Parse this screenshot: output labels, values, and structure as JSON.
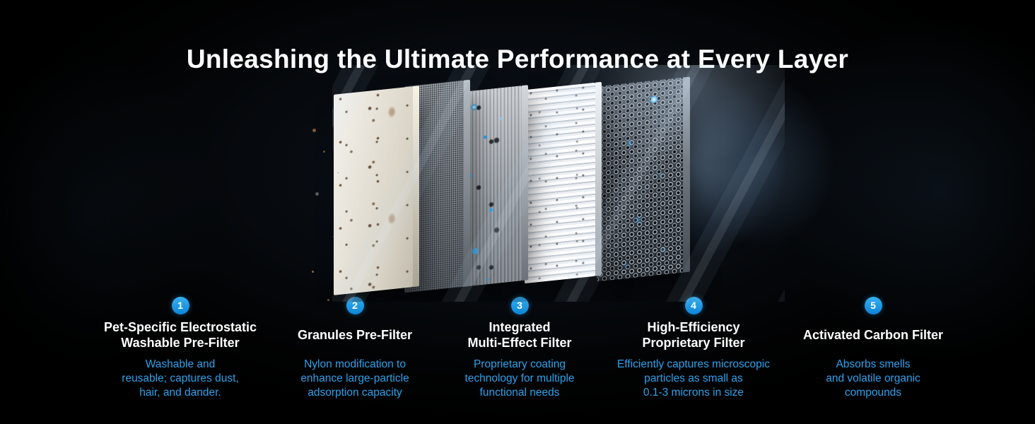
{
  "page": {
    "title": "Unleashing the Ultimate Performance at Every Layer",
    "background_color": "#000000",
    "accent_color": "#2da2ec",
    "badge_color": "#1895e8",
    "title_color": "#ffffff"
  },
  "graphic": {
    "panels": [
      "washable-pre-filter-panel",
      "granules-pre-filter-panel",
      "integrated-multi-effect-filter-panel",
      "high-efficiency-proprietary-filter-panel",
      "activated-carbon-filter-panel"
    ]
  },
  "layers": [
    {
      "number": "1",
      "title": "Pet-Specific Electrostatic\nWashable Pre-Filter",
      "description": "Washable and\nreusable; captures dust,\nhair, and dander."
    },
    {
      "number": "2",
      "title": "Granules Pre-Filter",
      "description": "Nylon modification to\nenhance large-particle\nadsorption capacity"
    },
    {
      "number": "3",
      "title": "Integrated\nMulti-Effect Filter",
      "description": "Proprietary coating\ntechnology for multiple\nfunctional needs"
    },
    {
      "number": "4",
      "title": "High-Efficiency\nProprietary Filter",
      "description": "Efficiently captures microscopic\nparticles as small as\n0.1-3 microns in size"
    },
    {
      "number": "5",
      "title": "Activated Carbon Filter",
      "description": "Absorbs smells\nand volatile organic\ncompounds"
    }
  ]
}
